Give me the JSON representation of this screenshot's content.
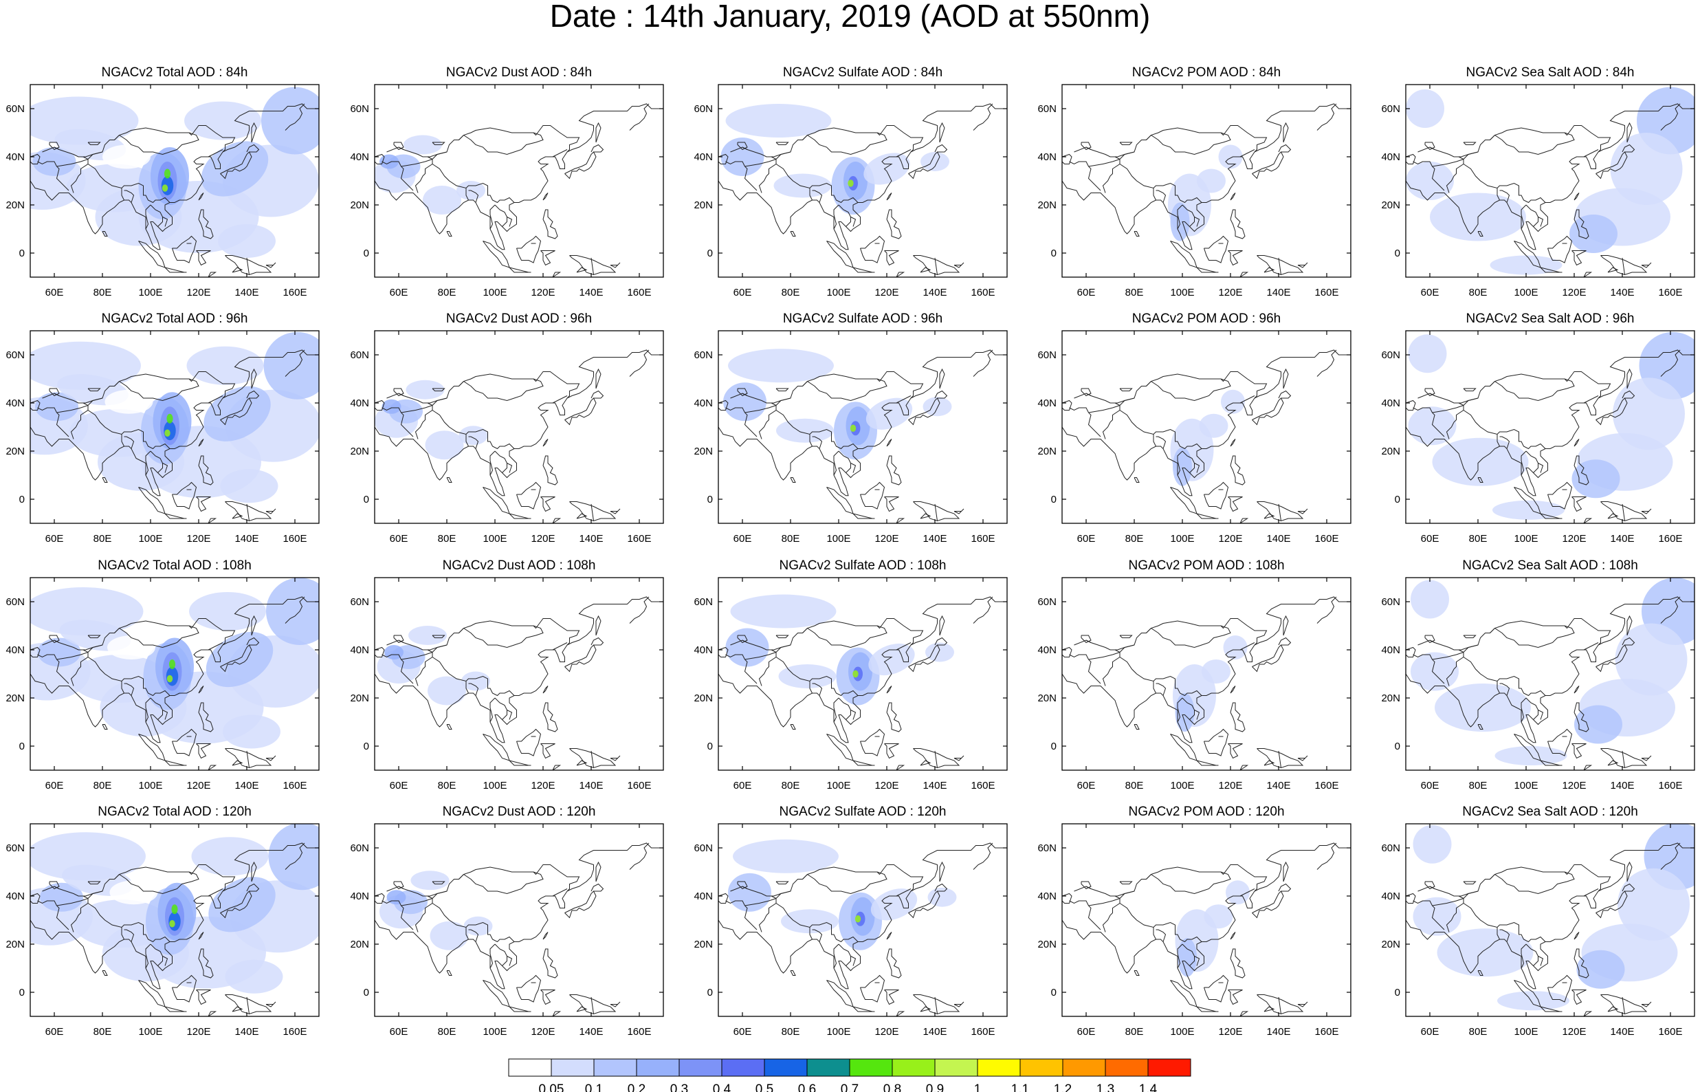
{
  "title": "Date : 14th January, 2019 (AOD at 550nm)",
  "rows": [
    {
      "hour": "84h",
      "panels": [
        {
          "species": "total",
          "title": "NGACv2 Total AOD : 84h"
        },
        {
          "species": "dust",
          "title": "NGACv2 Dust AOD : 84h"
        },
        {
          "species": "sulfate",
          "title": "NGACv2 Sulfate AOD : 84h"
        },
        {
          "species": "pom",
          "title": "NGACv2 POM AOD : 84h"
        },
        {
          "species": "seasalt",
          "title": "NGACv2 Sea Salt AOD : 84h"
        }
      ]
    },
    {
      "hour": "96h",
      "panels": [
        {
          "species": "total",
          "title": "NGACv2 Total AOD : 96h"
        },
        {
          "species": "dust",
          "title": "NGACv2 Dust AOD : 96h"
        },
        {
          "species": "sulfate",
          "title": "NGACv2 Sulfate AOD : 96h"
        },
        {
          "species": "pom",
          "title": "NGACv2 POM AOD : 96h"
        },
        {
          "species": "seasalt",
          "title": "NGACv2 Sea Salt AOD : 96h"
        }
      ]
    },
    {
      "hour": "108h",
      "panels": [
        {
          "species": "total",
          "title": "NGACv2 Total AOD : 108h"
        },
        {
          "species": "dust",
          "title": "NGACv2 Dust AOD : 108h"
        },
        {
          "species": "sulfate",
          "title": "NGACv2 Sulfate AOD : 108h"
        },
        {
          "species": "pom",
          "title": "NGACv2 POM AOD : 108h"
        },
        {
          "species": "seasalt",
          "title": "NGACv2 Sea Salt AOD : 108h"
        }
      ]
    },
    {
      "hour": "120h",
      "panels": [
        {
          "species": "total",
          "title": "NGACv2 Total AOD : 120h"
        },
        {
          "species": "dust",
          "title": "NGACv2 Dust AOD : 120h"
        },
        {
          "species": "sulfate",
          "title": "NGACv2 Sulfate AOD : 120h"
        },
        {
          "species": "pom",
          "title": "NGACv2 POM AOD : 120h"
        },
        {
          "species": "seasalt",
          "title": "NGACv2 Sea Salt  AOD : 120h"
        }
      ]
    }
  ],
  "map": {
    "lon_range": [
      50,
      170
    ],
    "lat_range": [
      -10,
      70
    ],
    "lon_ticks": [
      "60E",
      "80E",
      "100E",
      "120E",
      "140E",
      "160E"
    ],
    "lon_tick_values": [
      60,
      80,
      100,
      120,
      140,
      160
    ],
    "lat_ticks": [
      "60N",
      "40N",
      "20N",
      "0"
    ],
    "lat_tick_values": [
      60,
      40,
      20,
      0
    ]
  },
  "colorbar": {
    "labels": [
      "0.05",
      "0.1",
      "0.2",
      "0.3",
      "0.4",
      "0.5",
      "0.6",
      "0.7",
      "0.8",
      "0.9",
      "1",
      "1.1",
      "1.2",
      "1.3",
      "1.4"
    ],
    "colors": [
      "#ffffff",
      "#d3ddfd",
      "#b2c5fd",
      "#97b1fb",
      "#7d93f7",
      "#5b6ef4",
      "#1764e6",
      "#0d8f8f",
      "#55e60e",
      "#98f01a",
      "#c4f550",
      "#fffb00",
      "#ffc300",
      "#ff9900",
      "#ff6b00",
      "#ff1a00"
    ]
  }
}
